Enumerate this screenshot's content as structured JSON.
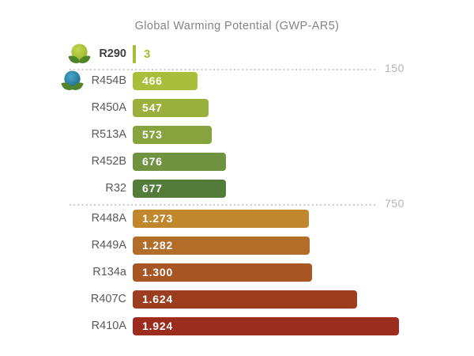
{
  "title": "Global Warming Potential (GWP-AR5)",
  "chart_data": {
    "type": "bar",
    "orientation": "horizontal",
    "title": "Global Warming Potential (GWP-AR5)",
    "categories": [
      "R290",
      "R454B",
      "R450A",
      "R513A",
      "R452B",
      "R32",
      "R448A",
      "R449A",
      "R134a",
      "R407C",
      "R410A"
    ],
    "values": [
      3,
      466,
      547,
      573,
      676,
      677,
      1273,
      1282,
      1300,
      1624,
      1924
    ],
    "value_labels": [
      "3",
      "466",
      "547",
      "573",
      "676",
      "677",
      "1.273",
      "1.282",
      "1.300",
      "1.624",
      "1.924"
    ],
    "xlim": [
      0,
      1950
    ],
    "grid": "dotted-thresholds",
    "legend": "none",
    "thresholds": [
      {
        "value": 150,
        "label": "150"
      },
      {
        "value": 750,
        "label": "750"
      }
    ]
  },
  "rows": [
    {
      "label": "R290",
      "value": 3,
      "value_display": "3",
      "bar_color": "#a2c037",
      "icon": "eco-ball-green",
      "bold_label": true,
      "value_position": "outside"
    },
    {
      "label": "R454B",
      "value": 466,
      "value_display": "466",
      "bar_color": "#a9bf3b",
      "icon": "eco-ball-blue",
      "bold_label": false,
      "value_position": "inside"
    },
    {
      "label": "R450A",
      "value": 547,
      "value_display": "547",
      "bar_color": "#99b03c",
      "icon": "",
      "bold_label": false,
      "value_position": "inside"
    },
    {
      "label": "R513A",
      "value": 573,
      "value_display": "573",
      "bar_color": "#87a33e",
      "icon": "",
      "bold_label": false,
      "value_position": "inside"
    },
    {
      "label": "R452B",
      "value": 676,
      "value_display": "676",
      "bar_color": "#6f9340",
      "icon": "",
      "bold_label": false,
      "value_position": "inside"
    },
    {
      "label": "R32",
      "value": 677,
      "value_display": "677",
      "bar_color": "#537c39",
      "icon": "",
      "bold_label": false,
      "value_position": "inside"
    },
    {
      "label": "R448A",
      "value": 1273,
      "value_display": "1.273",
      "bar_color": "#c1872c",
      "icon": "",
      "bold_label": false,
      "value_position": "inside"
    },
    {
      "label": "R449A",
      "value": 1282,
      "value_display": "1.282",
      "bar_color": "#b26d28",
      "icon": "",
      "bold_label": false,
      "value_position": "inside"
    },
    {
      "label": "R134a",
      "value": 1300,
      "value_display": "1.300",
      "bar_color": "#a85524",
      "icon": "",
      "bold_label": false,
      "value_position": "inside"
    },
    {
      "label": "R407C",
      "value": 1624,
      "value_display": "1.624",
      "bar_color": "#9d3d20",
      "icon": "",
      "bold_label": false,
      "value_position": "inside"
    },
    {
      "label": "R410A",
      "value": 1924,
      "value_display": "1.924",
      "bar_color": "#9b2c1e",
      "icon": "",
      "bold_label": false,
      "value_position": "inside"
    }
  ],
  "gridlines": [
    {
      "label": "150",
      "value": 150
    },
    {
      "label": "750",
      "value": 750
    }
  ],
  "colors": {
    "background": "#ffffff",
    "title_text": "#828487",
    "label_text": "#58595b",
    "bold_label_text": "#414042",
    "bar_value_text": "#ffffff",
    "outside_value_text": "#9fc030",
    "gridline_dot": "#c9cacb",
    "grid_label_text": "#b1b3b5",
    "leaf_green": "#4f8526",
    "ball_green": "#a8c634",
    "ball_blue": "#2380a6"
  }
}
